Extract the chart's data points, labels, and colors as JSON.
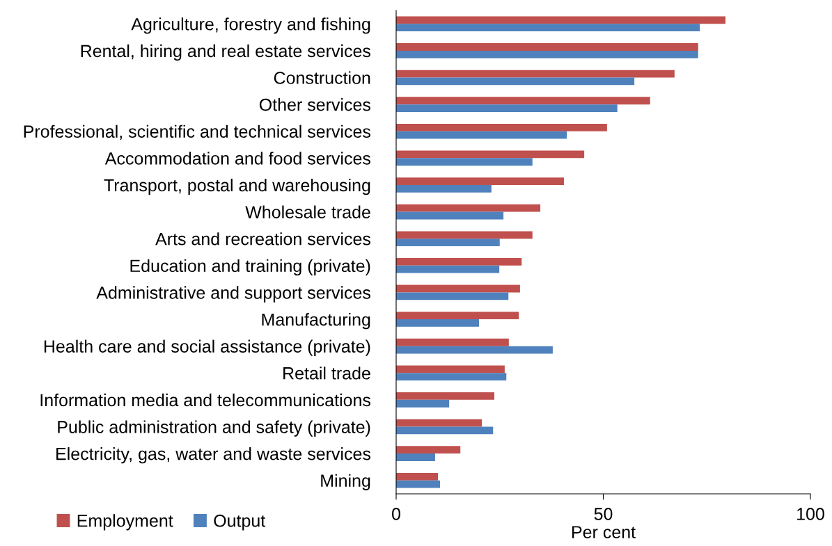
{
  "chart_data": {
    "type": "bar",
    "orientation": "horizontal",
    "xlabel": "Per cent",
    "categories": [
      "Agriculture, forestry and fishing",
      "Rental, hiring and real estate services",
      "Construction",
      "Other services",
      "Professional, scientific and technical services",
      "Accommodation and food services",
      "Transport, postal and warehousing",
      "Wholesale trade",
      "Arts and recreation services",
      "Education and training (private)",
      "Administrative and support services",
      "Manufacturing",
      "Health care and social assistance (private)",
      "Retail trade",
      "Information media and telecommunications",
      "Public administration and safety (private)",
      "Electricity, gas, water and waste services",
      "Mining"
    ],
    "series": [
      {
        "name": "Employment",
        "color": "#c0504d",
        "values": [
          79.5,
          72.9,
          67.2,
          61.3,
          50.9,
          45.4,
          40.5,
          34.8,
          32.9,
          30.3,
          29.9,
          29.6,
          27.2,
          26.2,
          23.7,
          20.7,
          15.5,
          10.1
        ]
      },
      {
        "name": "Output",
        "color": "#4f81bd",
        "values": [
          73.3,
          72.9,
          57.5,
          53.4,
          41.2,
          32.9,
          23.0,
          25.9,
          25.0,
          24.9,
          27.1,
          20.0,
          37.8,
          26.6,
          12.8,
          23.4,
          9.4,
          10.6
        ]
      }
    ],
    "xlim": [
      0,
      100
    ],
    "xticks": [
      0,
      50,
      100
    ],
    "grid": false,
    "legend": "bottom left"
  }
}
